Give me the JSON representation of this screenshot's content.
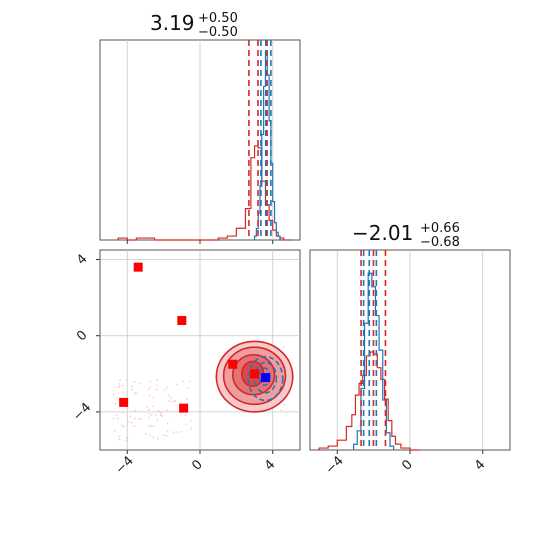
{
  "chart_data": {
    "type": "corner",
    "colors": {
      "red": "#d62728",
      "blue": "#1f77b4",
      "marker_red": "#ff0000",
      "marker_blue": "#0000ff",
      "fill_red": "#e8777a",
      "grid": "#c8c8c8"
    },
    "panels": [
      {
        "id": "p1",
        "type": "histogram",
        "title": {
          "value": "3.19",
          "plus": "+0.50",
          "minus": "−0.50"
        },
        "xlim": [
          -5.5,
          5.5
        ],
        "xticks": [
          -4,
          0,
          4
        ],
        "red_hist": {
          "bins": [
            -4.5,
            -4.0,
            -3.5,
            -3.0,
            -2.5,
            -2.0,
            -1.5,
            -1.0,
            -0.5,
            0.0,
            0.5,
            1.0,
            1.5,
            2.0,
            2.5,
            2.8,
            3.0,
            3.2,
            3.4,
            3.6,
            3.8,
            4.0,
            4.2,
            4.4,
            4.6,
            4.8,
            5.0
          ],
          "counts": [
            0.01,
            0.0,
            0.01,
            0.01,
            0.0,
            0.0,
            0.0,
            0.0,
            0.0,
            0.0,
            0.0,
            0.01,
            0.02,
            0.06,
            0.16,
            0.42,
            0.48,
            0.47,
            0.3,
            0.18,
            0.1,
            0.05,
            0.02,
            0.01,
            0.0,
            0.0
          ]
        },
        "blue_hist": {
          "bins": [
            3.0,
            3.1,
            3.2,
            3.3,
            3.4,
            3.5,
            3.6,
            3.7,
            3.8,
            3.9,
            4.0,
            4.1,
            4.2,
            4.3,
            4.4,
            4.5
          ],
          "counts": [
            0.02,
            0.06,
            0.14,
            0.28,
            0.55,
            0.8,
            0.98,
            0.86,
            0.62,
            0.4,
            0.2,
            0.09,
            0.04,
            0.02,
            0.0
          ]
        },
        "red_quantiles": [
          2.69,
          3.19,
          3.69
        ],
        "blue_quantiles": [
          3.35,
          3.62,
          3.9
        ]
      },
      {
        "id": "p2",
        "type": "histogram",
        "title": {
          "value": "−2.01",
          "plus": "+0.66",
          "minus": "−0.68"
        },
        "xlim": [
          -5.5,
          5.5
        ],
        "xticks": [
          -4,
          0,
          4
        ],
        "xtick_labels": [
          "−4",
          "0",
          "4"
        ],
        "red_hist": {
          "bins": [
            -5.0,
            -4.5,
            -4.0,
            -3.5,
            -3.2,
            -3.0,
            -2.8,
            -2.6,
            -2.4,
            -2.2,
            -2.0,
            -1.8,
            -1.6,
            -1.4,
            -1.2,
            -1.0,
            -0.8,
            -0.5,
            0.0,
            0.5
          ],
          "counts": [
            0.01,
            0.02,
            0.05,
            0.12,
            0.18,
            0.28,
            0.34,
            0.38,
            0.48,
            0.5,
            0.49,
            0.42,
            0.36,
            0.26,
            0.15,
            0.07,
            0.03,
            0.01,
            0.0
          ]
        },
        "blue_hist": {
          "bins": [
            -3.1,
            -2.9,
            -2.7,
            -2.5,
            -2.3,
            -2.1,
            -1.9,
            -1.7,
            -1.5,
            -1.3,
            -1.1,
            -0.9
          ],
          "counts": [
            0.03,
            0.1,
            0.32,
            0.66,
            0.92,
            0.85,
            0.7,
            0.52,
            0.26,
            0.09,
            0.02
          ]
        },
        "red_quantiles": [
          -2.69,
          -2.01,
          -1.35
        ],
        "blue_quantiles": [
          -2.55,
          -2.24,
          -1.85
        ]
      },
      {
        "id": "p3",
        "type": "2d",
        "xlim": [
          -5.5,
          5.5
        ],
        "ylim": [
          -6.0,
          4.5
        ],
        "xticks": [
          -4,
          0,
          4
        ],
        "yticks": [
          -4,
          0,
          4
        ],
        "xtick_labels": [
          "−4",
          "0",
          "4"
        ],
        "ytick_labels": [
          "−4",
          "0",
          "4"
        ],
        "red_markers": [
          [
            -3.4,
            3.6
          ],
          [
            -1.0,
            0.8
          ],
          [
            -4.2,
            -3.5
          ],
          [
            -0.9,
            -3.8
          ],
          [
            1.8,
            -1.5
          ],
          [
            3.0,
            -2.0
          ]
        ],
        "blue_markers": [
          [
            3.6,
            -2.2
          ]
        ],
        "red_contours": [
          {
            "cx": 3.0,
            "cy": -2.15,
            "rx": 2.1,
            "ry": 1.85,
            "level": 1
          },
          {
            "cx": 3.0,
            "cy": -2.1,
            "rx": 1.7,
            "ry": 1.5,
            "level": 2
          },
          {
            "cx": 2.95,
            "cy": -2.05,
            "rx": 1.15,
            "ry": 1.05,
            "level": 3
          },
          {
            "cx": 2.9,
            "cy": -2.0,
            "rx": 0.6,
            "ry": 0.65,
            "level": 4
          }
        ],
        "blue_contours": [
          {
            "cx": 3.6,
            "cy": -2.25,
            "rx": 0.95,
            "ry": 1.15
          },
          {
            "cx": 3.6,
            "cy": -2.2,
            "rx": 0.6,
            "ry": 0.8
          },
          {
            "cx": 3.55,
            "cy": -2.15,
            "rx": 0.3,
            "ry": 0.45
          }
        ]
      }
    ]
  }
}
